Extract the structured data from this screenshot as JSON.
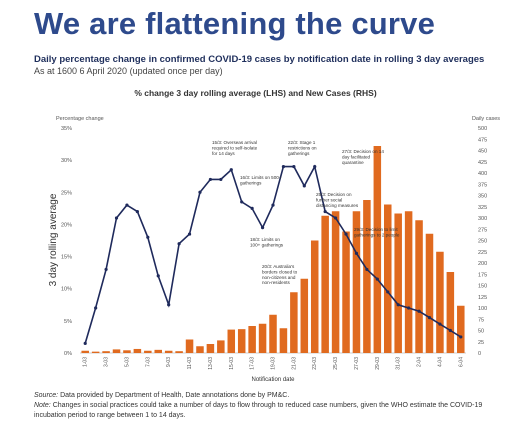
{
  "page": {
    "title": "We are flattening the curve",
    "subtitle": "Daily percentage change in confirmed COVID-19 cases by notification date in rolling 3 day averages",
    "asat": "As at 1600 6 April 2020 (updated once per day)"
  },
  "footer": {
    "source_label": "Source:",
    "source_text": "Data provided by Department of Health, Date annotations done by PM&C.",
    "note_label": "Note:",
    "note_text": "Changes in social practices could take a number of days to flow through to reduced case numbers, given the WHO estimate the COVID-19 incubation period to range between 1 to 14 days."
  },
  "colors": {
    "title": "#2e4a8c",
    "bar": "#e06a1f",
    "line": "#1f2a5c",
    "annotation": "#333333"
  },
  "chart_data": {
    "type": "bar+line",
    "title": "% change 3 day rolling average (LHS) and New Cases (RHS)",
    "xlabel": "Notification date",
    "ylabel_left": "3 day rolling average",
    "ylabel_left_top": "Percentage change",
    "ylabel_right_top": "Daily cases",
    "ylim_left": [
      0,
      35
    ],
    "ylim_right": [
      0,
      500
    ],
    "yticks_left": [
      "0%",
      "5%",
      "10%",
      "15%",
      "20%",
      "25%",
      "30%",
      "35%"
    ],
    "yticks_right": [
      "0",
      "25",
      "50",
      "75",
      "100",
      "125",
      "150",
      "175",
      "200",
      "225",
      "250",
      "275",
      "300",
      "325",
      "350",
      "375",
      "400",
      "425",
      "450",
      "475",
      "500"
    ],
    "categories": [
      "1-03",
      "2-03",
      "3-03",
      "4-03",
      "5-03",
      "6-03",
      "7-03",
      "8-03",
      "9-03",
      "10-03",
      "11-03",
      "12-03",
      "13-03",
      "14-03",
      "15-03",
      "16-03",
      "17-03",
      "18-03",
      "19-03",
      "20-03",
      "21-03",
      "22-03",
      "23-03",
      "24-03",
      "25-03",
      "26-03",
      "27-03",
      "28-03",
      "29-03",
      "30-03",
      "31-03",
      "1-04",
      "2-04",
      "3-04",
      "4-04",
      "5-04",
      "6-04"
    ],
    "series": [
      {
        "name": "New Cases (RHS)",
        "type": "bar",
        "axis": "right",
        "values": [
          5,
          3,
          4,
          8,
          6,
          9,
          5,
          7,
          5,
          4,
          30,
          15,
          20,
          28,
          52,
          53,
          60,
          65,
          85,
          55,
          135,
          165,
          250,
          305,
          315,
          270,
          315,
          340,
          460,
          330,
          310,
          315,
          295,
          265,
          225,
          180,
          105
        ]
      },
      {
        "name": "% change 3 day rolling average (LHS)",
        "type": "line",
        "axis": "left",
        "values": [
          1.5,
          7,
          13,
          21,
          23,
          22,
          18,
          12,
          7.5,
          17,
          18.5,
          25,
          27,
          27,
          28.5,
          23.5,
          22.5,
          19.5,
          23,
          29,
          29,
          26,
          29,
          22,
          21,
          18.5,
          15.5,
          13,
          11.5,
          9.5,
          7.5,
          7,
          6.5,
          5.5,
          4.5,
          3.5,
          2.5
        ]
      }
    ],
    "xtick_labels": [
      "1-03",
      "3-03",
      "5-03",
      "7-03",
      "9-03",
      "11-03",
      "13-03",
      "15-03",
      "17-03",
      "19-03",
      "21-03",
      "23-03",
      "25-03",
      "27-03",
      "29-03",
      "31-03",
      "2-04",
      "4-04",
      "6-04"
    ],
    "annotations": [
      {
        "text": "15/3: Overseas arrival required to self-isolate for 14 days",
        "x": "15-03"
      },
      {
        "text": "16/3: Limits on 500+ gatherings",
        "x": "16-03"
      },
      {
        "text": "18/3: Limits on 100+ gatherings",
        "x": "18-03"
      },
      {
        "text": "20/3: Australia's borders closed to non-citizens and non-residents",
        "x": "20-03"
      },
      {
        "text": "22/3: Stage 1 restrictions on gatherings",
        "x": "22-03"
      },
      {
        "text": "25/3: Decision on further social distancing measures",
        "x": "25-03"
      },
      {
        "text": "27/3: Decision on 14 day facilitated quarantine",
        "x": "27-03"
      },
      {
        "text": "29/3: Decision to limit gatherings to 2 people",
        "x": "29-03"
      }
    ]
  }
}
